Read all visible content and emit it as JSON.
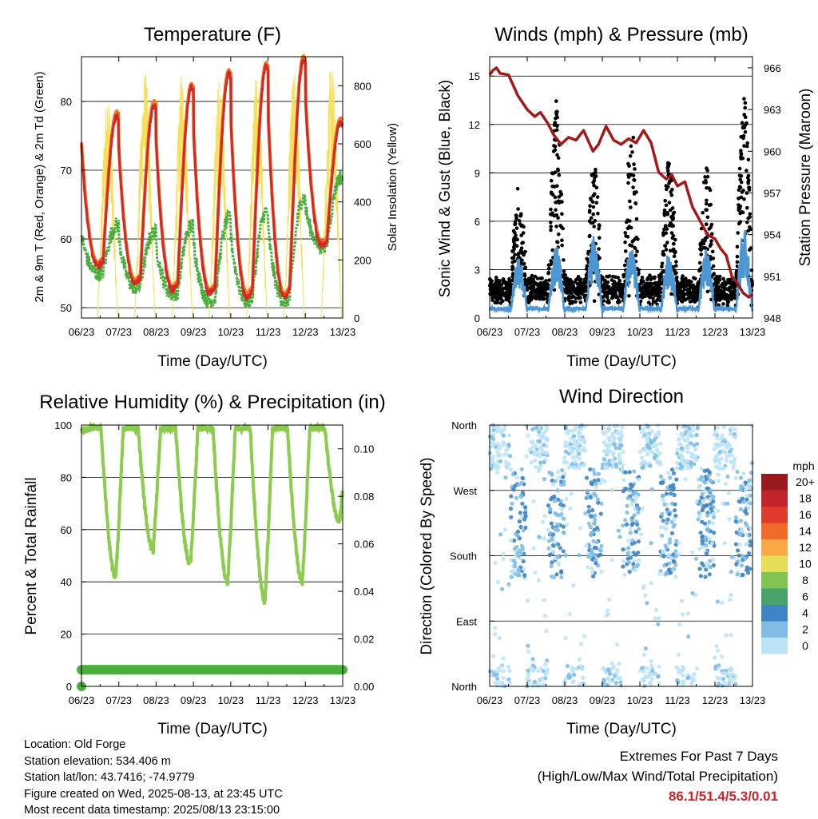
{
  "colors": {
    "temp_red": "#d62728",
    "temp_orange": "#f07a1e",
    "dewpoint_green": "#4aad3c",
    "solar_yellow": "#f6e05a",
    "wind_blue": "#4d96d4",
    "gust_black": "#000000",
    "pressure_maroon": "#a31a1a",
    "rh_green": "#8ccc4c",
    "precip_green": "#4aad3c"
  },
  "chart_data": [
    {
      "id": "temperature",
      "type": "line",
      "title": "Temperature (F)",
      "xlabel": "Time (Day/UTC)",
      "ylabel": "2m & 9m T (Red, Orange) & 2m Td (Green)",
      "ylabel_right": "Solar Insolation (Yellow)",
      "x_ticks": [
        "06/23",
        "07/23",
        "08/23",
        "09/23",
        "10/23",
        "11/23",
        "12/23",
        "13/23"
      ],
      "xlim": [
        0,
        7
      ],
      "ylim": [
        48.5,
        86.5
      ],
      "y_ticks": [
        50,
        60,
        70,
        80
      ],
      "ylim_right": [
        0,
        900
      ],
      "y_ticks_right": [
        0,
        200,
        400,
        600,
        800
      ],
      "gridlines": [
        50,
        60,
        70,
        80
      ],
      "daily_max_temp": [
        78,
        79.5,
        82,
        84,
        85,
        86,
        77
      ],
      "daily_min_temp": [
        56,
        53.5,
        52.5,
        52,
        51.5,
        51.4,
        59
      ],
      "daily_max_dewpoint": [
        62,
        61,
        62,
        63,
        64,
        66,
        69
      ],
      "daily_min_dewpoint": [
        55,
        53,
        52,
        51,
        51,
        51,
        59
      ],
      "daily_peak_solar": [
        780,
        860,
        850,
        840,
        850,
        890,
        880
      ],
      "series": [
        {
          "name": "2m T",
          "color_key": "temp_red"
        },
        {
          "name": "9m T",
          "color_key": "temp_orange"
        },
        {
          "name": "2m Td",
          "color_key": "dewpoint_green"
        },
        {
          "name": "Solar Insolation",
          "color_key": "solar_yellow"
        }
      ]
    },
    {
      "id": "winds",
      "type": "scatter",
      "title": "Winds (mph) & Pressure (mb)",
      "xlabel": "Time (Day/UTC)",
      "ylabel": "Sonic Wind & Gust (Blue, Black)",
      "ylabel_right": "Station Pressure (Maroon)",
      "x_ticks": [
        "06/23",
        "07/23",
        "08/23",
        "09/23",
        "10/23",
        "11/23",
        "12/23",
        "13/23"
      ],
      "xlim": [
        0,
        7
      ],
      "ylim": [
        0,
        16.2
      ],
      "y_ticks": [
        0,
        3,
        6,
        9,
        12,
        15
      ],
      "ylim_right": [
        948,
        966.8
      ],
      "y_ticks_right": [
        948,
        951,
        954,
        957,
        960,
        963,
        966
      ],
      "gridlines": [
        3,
        6,
        9,
        12,
        15
      ],
      "daily_peak_gust": [
        8.8,
        13.8,
        10.5,
        12.2,
        10.5,
        10.5,
        14.3
      ],
      "daily_peak_wind": [
        3.8,
        4.2,
        5,
        4.5,
        3.8,
        4,
        5.3
      ],
      "pressure": {
        "t": [
          0,
          0.08,
          0.18,
          0.28,
          0.5,
          0.75,
          1.0,
          1.2,
          1.35,
          1.55,
          1.7,
          1.9,
          2.1,
          2.3,
          2.5,
          2.75,
          2.9,
          3.1,
          3.3,
          3.5,
          3.7,
          3.9,
          4.1,
          4.3,
          4.5,
          4.7,
          4.85,
          5.0,
          5.2,
          5.4,
          5.6,
          5.8,
          6.0,
          6.15,
          6.3,
          6.45,
          6.6,
          6.75,
          6.9,
          7.0
        ],
        "mb": [
          965.5,
          965.8,
          966,
          965.6,
          965.5,
          964,
          963,
          962.5,
          962.8,
          962,
          961.2,
          960.5,
          961,
          960.8,
          961.5,
          960,
          960.5,
          961.8,
          960.8,
          960.5,
          960.9,
          960.6,
          961.5,
          960.6,
          958.5,
          958,
          958.3,
          957.5,
          957.8,
          956,
          955,
          954,
          953.7,
          953,
          952.5,
          951,
          950.5,
          949.8,
          949.5,
          949.7
        ]
      },
      "series": [
        {
          "name": "Sonic Wind",
          "color_key": "wind_blue"
        },
        {
          "name": "Gust",
          "color_key": "gust_black"
        },
        {
          "name": "Station Pressure",
          "color_key": "pressure_maroon"
        }
      ]
    },
    {
      "id": "humidity",
      "type": "line",
      "title": "Relative Humidity (%) & Precipitation (in)",
      "xlabel": "Time (Day/UTC)",
      "ylabel": "Percent & Total Rainfall",
      "x_ticks": [
        "06/23",
        "07/23",
        "08/23",
        "09/23",
        "10/23",
        "11/23",
        "12/23",
        "13/23"
      ],
      "xlim": [
        0,
        7
      ],
      "ylim": [
        0,
        100
      ],
      "y_ticks": [
        0,
        20,
        40,
        60,
        80,
        100
      ],
      "ylim_right": [
        0,
        0.11
      ],
      "y_ticks_right": [
        "0.00",
        "0.02",
        "0.04",
        "0.06",
        "0.08",
        "0.10"
      ],
      "gridlines": [
        20,
        40,
        60,
        80
      ],
      "daily_min_rh": [
        42,
        52,
        47,
        40,
        33,
        40,
        63
      ],
      "daily_max_rh": [
        99,
        99,
        99,
        99,
        99,
        99,
        99
      ],
      "precip_total": 0.01,
      "series": [
        {
          "name": "Relative Humidity",
          "color_key": "rh_green"
        },
        {
          "name": "Total Rainfall",
          "color_key": "precip_green"
        }
      ]
    },
    {
      "id": "direction",
      "type": "scatter",
      "title": "Wind Direction",
      "xlabel": "Time (Day/UTC)",
      "ylabel": "Direction (Colored By Speed)",
      "x_ticks": [
        "06/23",
        "07/23",
        "08/23",
        "09/23",
        "10/23",
        "11/23",
        "12/23",
        "13/23"
      ],
      "xlim": [
        0,
        7
      ],
      "ylim": [
        0,
        360
      ],
      "y_ticks": [
        {
          "deg": 0,
          "label": "North"
        },
        {
          "deg": 90,
          "label": "East"
        },
        {
          "deg": 180,
          "label": "South"
        },
        {
          "deg": 270,
          "label": "West"
        },
        {
          "deg": 360,
          "label": "North"
        }
      ],
      "gridlines": [
        90,
        180,
        270
      ],
      "legend": {
        "title": "mph",
        "placement": "right",
        "levels": [
          {
            "label": "20+",
            "color": "#981a1e"
          },
          {
            "label": "18",
            "color": "#c2242b"
          },
          {
            "label": "16",
            "color": "#e03a2c"
          },
          {
            "label": "14",
            "color": "#f16a2a"
          },
          {
            "label": "12",
            "color": "#f9a845"
          },
          {
            "label": "10",
            "color": "#e5dd55"
          },
          {
            "label": "8",
            "color": "#82c451"
          },
          {
            "label": "6",
            "color": "#47a36a"
          },
          {
            "label": "4",
            "color": "#3f84c4"
          },
          {
            "label": "2",
            "color": "#80bce6"
          },
          {
            "label": "0",
            "color": "#bde3f7"
          }
        ]
      }
    }
  ],
  "info": {
    "location": "Location: Old Forge",
    "elevation": "Station elevation: 534.406 m",
    "latlon": "Station lat/lon: 43.7416; -74.9779",
    "created": "Figure created on Wed, 2025-08-13, at 23:45 UTC",
    "recent": "Most recent data timestamp: 2025/08/13 23:15:00"
  },
  "extremes": {
    "title": "Extremes For Past 7 Days",
    "subtitle": "(High/Low/Max Wind/Total Precipitation)",
    "values": "86.1/51.4/5.3/0.01"
  }
}
